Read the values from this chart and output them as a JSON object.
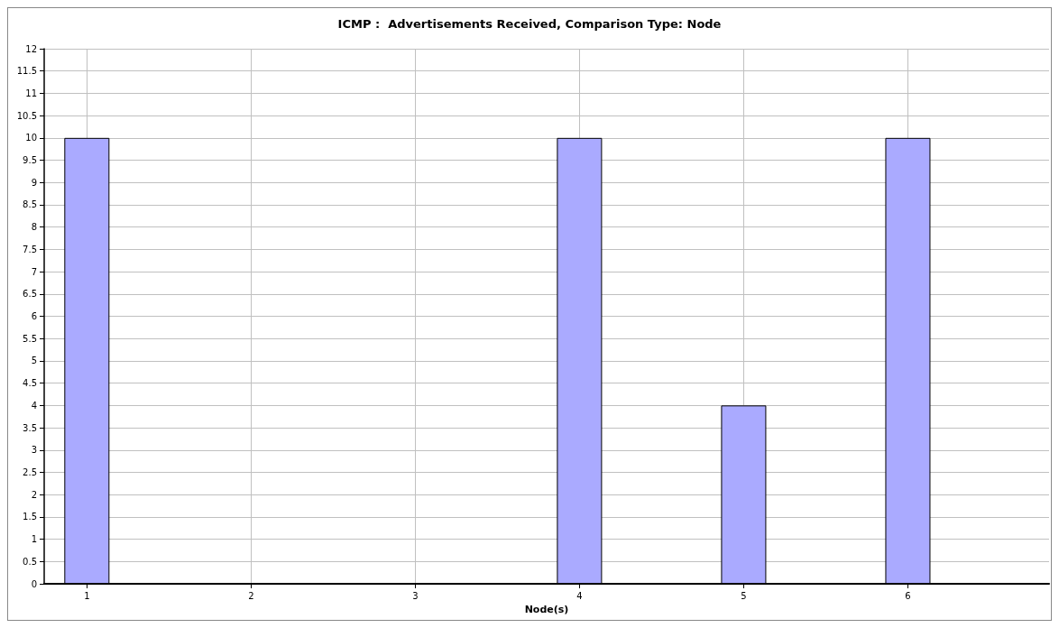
{
  "chart_data": {
    "type": "bar",
    "title": "ICMP :  Advertisements Received, Comparison Type: Node",
    "xlabel": "Node(s)",
    "x": [
      1,
      2,
      3,
      4,
      5,
      6
    ],
    "values": [
      10,
      0,
      0,
      10,
      4,
      10
    ],
    "color": "#aaaaff",
    "xlim": [
      0.74,
      6.86
    ],
    "xticks": [
      1,
      2,
      3,
      4,
      5,
      6
    ],
    "ylim": [
      0,
      12
    ],
    "yticks": [
      0,
      0.5,
      1,
      1.5,
      2,
      2.5,
      3,
      3.5,
      4,
      4.5,
      5,
      5.5,
      6,
      6.5,
      7,
      7.5,
      8,
      8.5,
      9,
      9.5,
      10,
      10.5,
      11,
      11.5,
      12
    ],
    "grid": true
  }
}
